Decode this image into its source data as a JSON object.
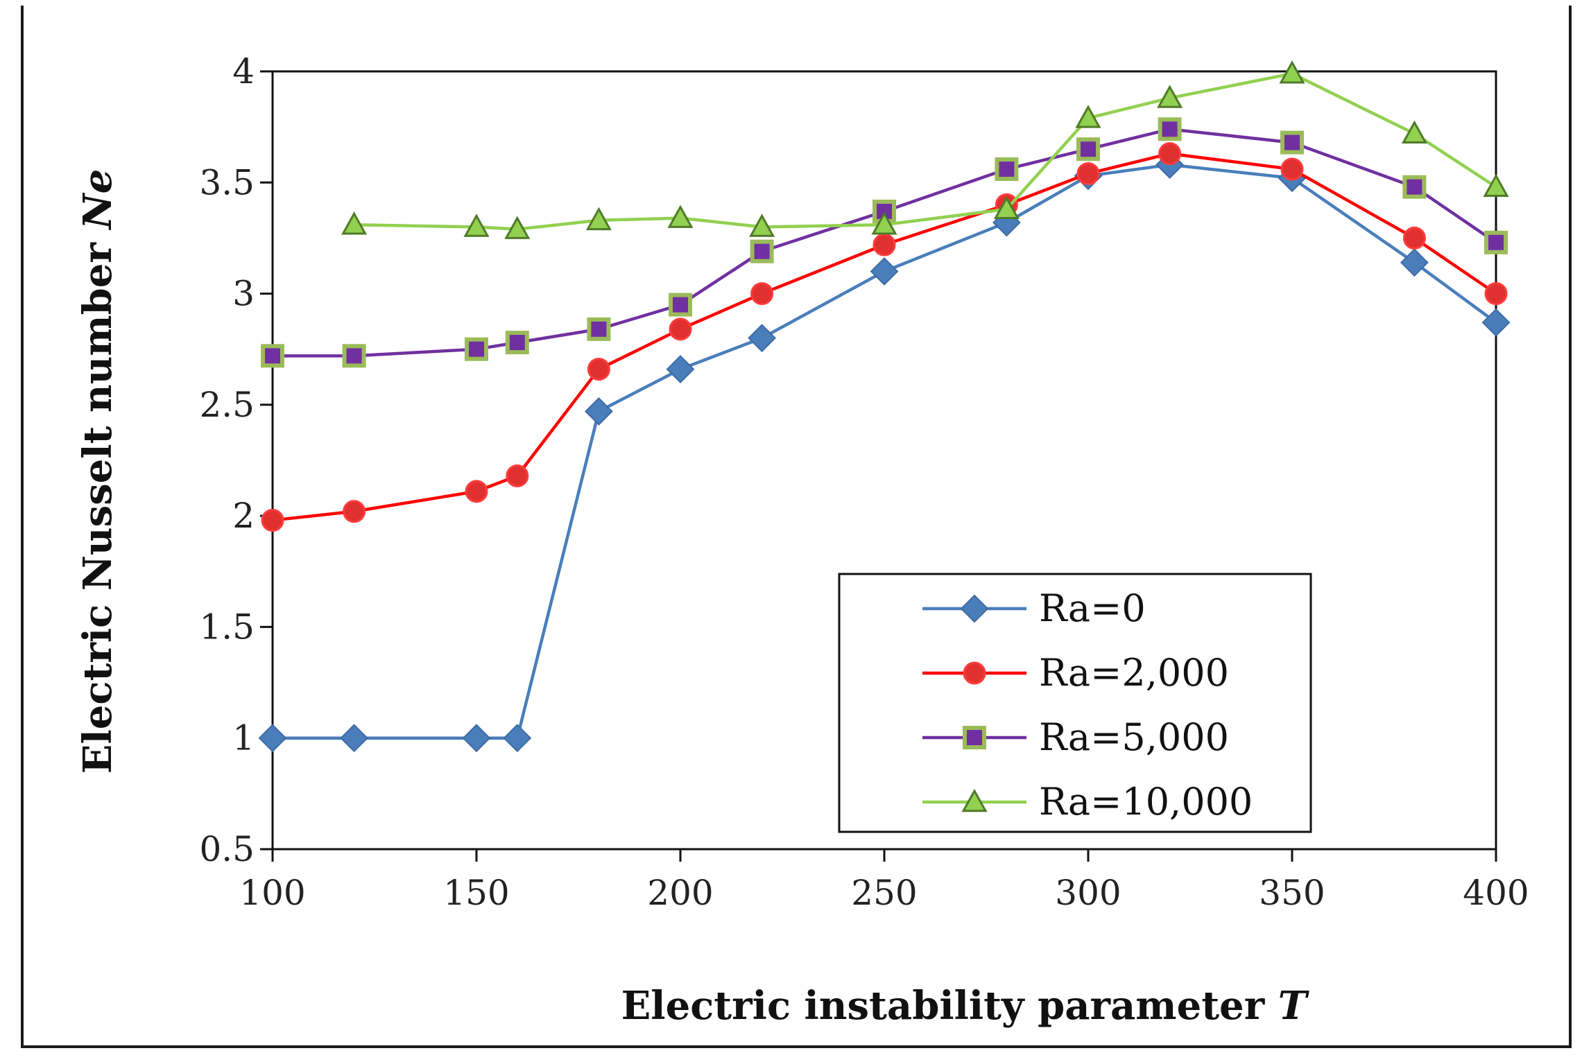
{
  "chart_data": {
    "type": "line",
    "xlabel": "Electric instability parameter",
    "xlabel_symbol": "T",
    "ylabel": "Electric Nusselt number",
    "ylabel_symbol": "Ne",
    "xlim": [
      100,
      400
    ],
    "ylim": [
      0.5,
      4
    ],
    "xticks": [
      100,
      150,
      200,
      250,
      300,
      350,
      400
    ],
    "yticks": [
      0.5,
      1,
      1.5,
      2,
      2.5,
      3,
      3.5,
      4
    ],
    "xtick_labels": [
      "100",
      "150",
      "200",
      "250",
      "300",
      "350",
      "400"
    ],
    "ytick_labels": [
      "0.5",
      "1",
      "1.5",
      "2",
      "2.5",
      "3",
      "3.5",
      "4"
    ],
    "grid": false,
    "legend_position": "bottom-right",
    "series": [
      {
        "name": "Ra=0",
        "color": "#4a7ebb",
        "marker": "diamond",
        "x": [
          100,
          120,
          150,
          160,
          180,
          200,
          220,
          250,
          280,
          300,
          320,
          350,
          380,
          400
        ],
        "y": [
          1.0,
          1.0,
          1.0,
          1.0,
          2.47,
          2.66,
          2.8,
          3.1,
          3.32,
          3.53,
          3.58,
          3.52,
          3.14,
          2.87
        ]
      },
      {
        "name": "Ra=2,000",
        "color": "#ff0000",
        "marker_fill": "#e03030",
        "marker": "circle",
        "x": [
          100,
          120,
          150,
          160,
          180,
          200,
          220,
          250,
          280,
          300,
          320,
          350,
          380,
          400
        ],
        "y": [
          1.98,
          2.02,
          2.11,
          2.18,
          2.66,
          2.84,
          3.0,
          3.22,
          3.4,
          3.54,
          3.63,
          3.56,
          3.25,
          3.0
        ]
      },
      {
        "name": "Ra=5,000",
        "color": "#7030a0",
        "marker_fill": "#7030a0",
        "marker_edge": "#9bbb59",
        "marker": "square",
        "x": [
          100,
          120,
          150,
          160,
          180,
          200,
          220,
          250,
          280,
          300,
          320,
          350,
          380,
          400
        ],
        "y": [
          2.72,
          2.72,
          2.75,
          2.78,
          2.84,
          2.95,
          3.19,
          3.37,
          3.56,
          3.65,
          3.74,
          3.68,
          3.48,
          3.23
        ]
      },
      {
        "name": "Ra=10,000",
        "color": "#92d050",
        "marker_fill": "#92d050",
        "marker_edge": "#4f7a28",
        "marker": "triangle",
        "x": [
          120,
          150,
          160,
          180,
          200,
          220,
          250,
          280,
          300,
          320,
          350,
          380,
          400
        ],
        "y": [
          3.31,
          3.3,
          3.29,
          3.33,
          3.34,
          3.3,
          3.31,
          3.38,
          3.79,
          3.88,
          3.99,
          3.72,
          3.48
        ]
      }
    ]
  }
}
